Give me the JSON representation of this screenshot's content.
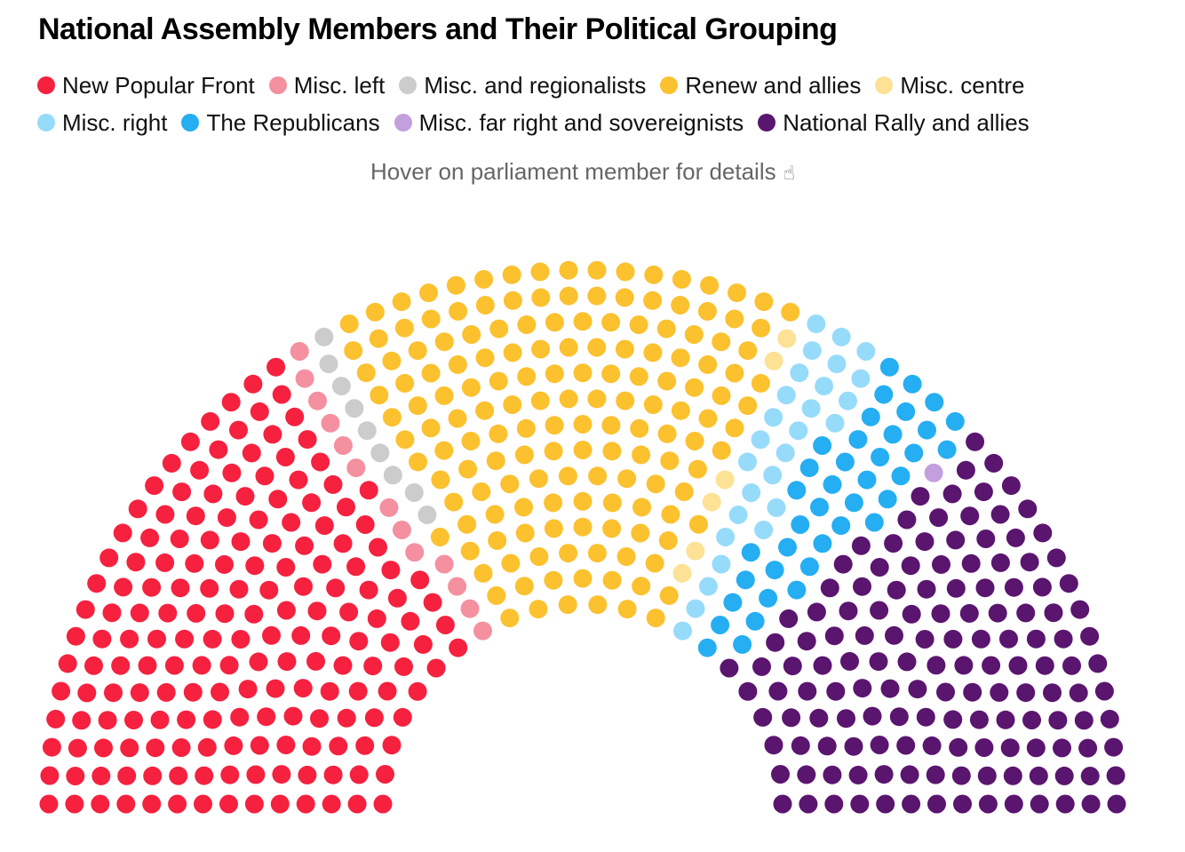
{
  "title": "National Assembly Members and Their Political Grouping",
  "hint": "Hover on parliament member for details",
  "hint_icon": "pointer-hand-icon",
  "legend": [
    [
      {
        "label": "New Popular Front",
        "color": "#f5213f"
      },
      {
        "label": "Misc. left",
        "color": "#f4909f"
      },
      {
        "label": "Misc. and regionalists",
        "color": "#cccccc"
      },
      {
        "label": "Renew and allies",
        "color": "#fcc12e"
      },
      {
        "label": "Misc. centre",
        "color": "#fde295"
      }
    ],
    [
      {
        "label": "Misc. right",
        "color": "#97dbfa"
      },
      {
        "label": "The Republicans",
        "color": "#25aef2"
      },
      {
        "label": "Misc. far right and sovereignists",
        "color": "#c49fde"
      },
      {
        "label": "National Rally and allies",
        "color": "#5a156f"
      }
    ]
  ],
  "chart_data": {
    "type": "parliament",
    "title": "National Assembly Members and Their Political Grouping",
    "total_seats": 577,
    "rows": 14,
    "series": [
      {
        "name": "New Popular Front",
        "seats": 180,
        "color": "#f5213f"
      },
      {
        "name": "Misc. left",
        "seats": 13,
        "color": "#f4909f"
      },
      {
        "name": "Misc. and regionalists",
        "seats": 9,
        "color": "#cccccc"
      },
      {
        "name": "Renew and allies",
        "seats": 159,
        "color": "#fcc12e"
      },
      {
        "name": "Misc. centre",
        "seats": 6,
        "color": "#fde295"
      },
      {
        "name": "Misc. right",
        "seats": 27,
        "color": "#97dbfa"
      },
      {
        "name": "The Republicans",
        "seats": 39,
        "color": "#25aef2"
      },
      {
        "name": "Misc. far right and sovereignists",
        "seats": 1,
        "color": "#c49fde"
      },
      {
        "name": "National Rally and allies",
        "seats": 143,
        "color": "#5a156f"
      }
    ]
  }
}
